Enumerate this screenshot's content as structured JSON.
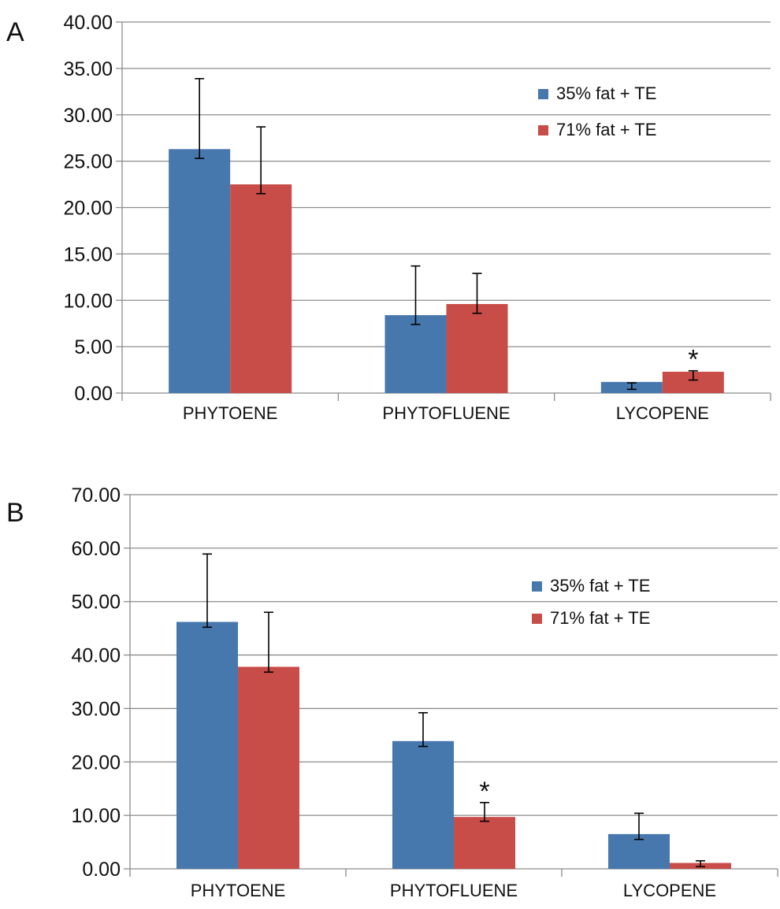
{
  "colors": {
    "series_35": "#4678ae",
    "series_71": "#c84c48",
    "grid": "#8c8c8c",
    "axis": "#8c8c8c",
    "error_bar": "#000000"
  },
  "chart_data": [
    {
      "panel_label": "A",
      "type": "bar",
      "categories": [
        "PHYTOENE",
        "PHYTOFLUENE",
        "LYCOPENE"
      ],
      "ylim": [
        0,
        40
      ],
      "ytick_step": 5,
      "yticks": [
        "0.00",
        "5.00",
        "10.00",
        "15.00",
        "20.00",
        "25.00",
        "30.00",
        "35.00",
        "40.00"
      ],
      "grid": true,
      "legend_position": "top-right",
      "series": [
        {
          "name": "35% fat + TE",
          "values": [
            26.3,
            8.4,
            1.2
          ],
          "err_low": [
            25.3,
            7.4,
            0.4
          ],
          "err_high": [
            33.9,
            13.7,
            1.1
          ]
        },
        {
          "name": "71% fat + TE",
          "values": [
            22.5,
            9.6,
            2.3
          ],
          "err_low": [
            21.5,
            8.6,
            1.4
          ],
          "err_high": [
            28.7,
            12.9,
            2.4
          ]
        }
      ],
      "annotations": [
        {
          "text": "*",
          "category": "LYCOPENE",
          "series": "71% fat + TE"
        }
      ]
    },
    {
      "panel_label": "B",
      "type": "bar",
      "categories": [
        "PHYTOENE",
        "PHYTOFLUENE",
        "LYCOPENE"
      ],
      "ylim": [
        0,
        70
      ],
      "ytick_step": 10,
      "yticks": [
        "0.00",
        "10.00",
        "20.00",
        "30.00",
        "40.00",
        "50.00",
        "60.00",
        "70.00"
      ],
      "grid": true,
      "legend_position": "top-right",
      "series": [
        {
          "name": "35% fat + TE",
          "values": [
            46.2,
            23.9,
            6.5
          ],
          "err_low": [
            45.2,
            22.9,
            5.5
          ],
          "err_high": [
            58.9,
            29.2,
            10.4
          ]
        },
        {
          "name": "71% fat + TE",
          "values": [
            37.8,
            9.7,
            1.1
          ],
          "err_low": [
            36.8,
            8.9,
            0.4
          ],
          "err_high": [
            48.0,
            12.4,
            1.5
          ]
        }
      ],
      "annotations": [
        {
          "text": "*",
          "category": "PHYTOFLUENE",
          "series": "71% fat + TE"
        }
      ]
    }
  ]
}
